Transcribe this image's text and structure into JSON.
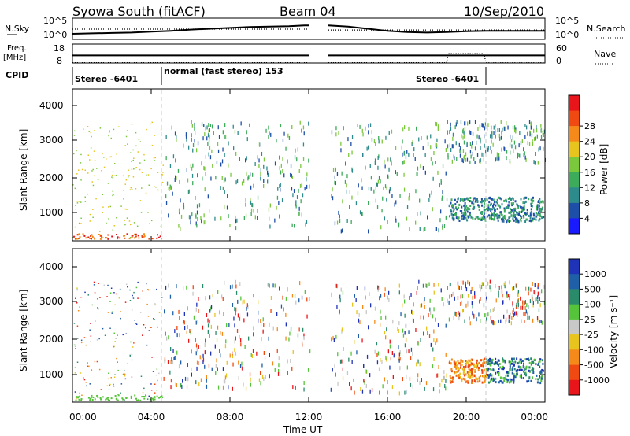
{
  "header": {
    "title": "Syowa South (fitACF)",
    "beam": "Beam 04",
    "date": "10/Sep/2010"
  },
  "labels": {
    "nsky": "N.Sky",
    "nsearch": "N.Search",
    "freq": "Freq.",
    "freq_unit": "[MHz]",
    "nave": "Nave",
    "cpid": "CPID",
    "cpid_segments": [
      "Stereo -6401",
      "normal (fast stereo) 153",
      "Stereo -6401"
    ]
  },
  "colors": {
    "frame": "#000000",
    "dashed_marker": "#c8c8c8",
    "power_scale": [
      "#1a1aff",
      "#1e4fa8",
      "#2e8b8b",
      "#3cab5a",
      "#7cc83c",
      "#e8c51e",
      "#f58a1a",
      "#f04a12",
      "#e8151a"
    ],
    "velocity_scale": [
      "#1f33b8",
      "#1f5fa8",
      "#2a8b6b",
      "#56c43a",
      "#c8c8c8",
      "#e8c51e",
      "#f58a1a",
      "#f04a12",
      "#e8151a"
    ]
  },
  "chart_data": [
    {
      "type": "line",
      "name": "nsky-nsearch",
      "ylabel": "N.Sky",
      "y2label": "N.Search",
      "yticks": [
        "10^0",
        "10^5"
      ],
      "y2ticks": [
        "10^0",
        "10^5"
      ],
      "log_y": true,
      "series": [
        {
          "name": "N.Sky",
          "style": "solid",
          "points": [
            [
              0.0,
              1.3
            ],
            [
              1.0,
              1.4
            ],
            [
              2.0,
              1.5
            ],
            [
              3.0,
              1.6
            ],
            [
              4.0,
              1.8
            ],
            [
              5.0,
              2.0
            ],
            [
              6.0,
              2.3
            ],
            [
              7.0,
              2.5
            ],
            [
              8.0,
              2.7
            ],
            [
              9.0,
              2.9
            ],
            [
              10.0,
              3.0
            ],
            [
              11.0,
              3.1
            ],
            [
              11.8,
              3.3
            ],
            [
              12.0,
              3.3
            ]
          ]
        },
        {
          "name": "N.Sky",
          "style": "solid",
          "points": [
            [
              13.0,
              3.3
            ],
            [
              14.0,
              3.0
            ],
            [
              15.0,
              2.5
            ],
            [
              16.0,
              2.0
            ],
            [
              17.0,
              1.7
            ],
            [
              18.0,
              1.6
            ],
            [
              19.0,
              1.7
            ],
            [
              20.0,
              1.9
            ],
            [
              21.0,
              2.0
            ],
            [
              22.0,
              2.0
            ],
            [
              23.0,
              2.0
            ],
            [
              24.0,
              2.0
            ]
          ]
        },
        {
          "name": "N.Search",
          "style": "dotted",
          "points": [
            [
              0.0,
              2.4
            ],
            [
              12.0,
              2.4
            ]
          ]
        },
        {
          "name": "N.Search",
          "style": "dotted",
          "points": [
            [
              13.0,
              2.2
            ],
            [
              24.0,
              2.2
            ]
          ]
        }
      ]
    },
    {
      "type": "line",
      "name": "freq-nave",
      "ylabel": "Freq. [MHz]",
      "y2label": "Nave",
      "ylim": [
        8,
        18
      ],
      "yticks": [
        "8",
        "18"
      ],
      "y2lim": [
        0,
        60
      ],
      "y2ticks": [
        "0",
        "60"
      ],
      "series": [
        {
          "name": "Freq.",
          "style": "solid",
          "points": [
            [
              0.0,
              12.0
            ],
            [
              12.0,
              12.0
            ]
          ]
        },
        {
          "name": "Freq.",
          "style": "solid",
          "points": [
            [
              13.0,
              12.0
            ],
            [
              24.0,
              12.0
            ]
          ]
        },
        {
          "name": "Nave",
          "style": "dotted",
          "points": [
            [
              0.0,
              1
            ],
            [
              12.0,
              1
            ]
          ]
        },
        {
          "name": "Nave",
          "style": "dotted",
          "points": [
            [
              13.0,
              1
            ],
            [
              19.0,
              1
            ],
            [
              19.1,
              30
            ],
            [
              20.9,
              30
            ],
            [
              21.0,
              1
            ],
            [
              24.0,
              1
            ]
          ]
        }
      ]
    },
    {
      "type": "scatter",
      "name": "power",
      "ylabel": "Slant Range [km]",
      "ylim": [
        150,
        4550
      ],
      "yticks": [
        "1000",
        "2000",
        "3000",
        "4000"
      ],
      "xlim": [
        0,
        24
      ],
      "colorbar_label": "Power [dB]",
      "colorbar_ticks": [
        "4",
        "8",
        "12",
        "16",
        "20",
        "24",
        "28"
      ],
      "zlim": [
        0,
        32
      ]
    },
    {
      "type": "scatter",
      "name": "velocity",
      "ylabel": "Slant Range [km]",
      "ylim": [
        150,
        4550
      ],
      "yticks": [
        "1000",
        "2000",
        "3000",
        "4000"
      ],
      "xlim": [
        0,
        24
      ],
      "xticks": [
        "00:00",
        "04:00",
        "08:00",
        "12:00",
        "16:00",
        "20:00",
        "00:00"
      ],
      "xlabel": "Time UT",
      "colorbar_label": "Velocity [m s⁻¹]",
      "colorbar_ticks": [
        "1000",
        "500",
        "100",
        "25",
        "-25",
        "-100",
        "-500",
        "-1000"
      ]
    }
  ]
}
